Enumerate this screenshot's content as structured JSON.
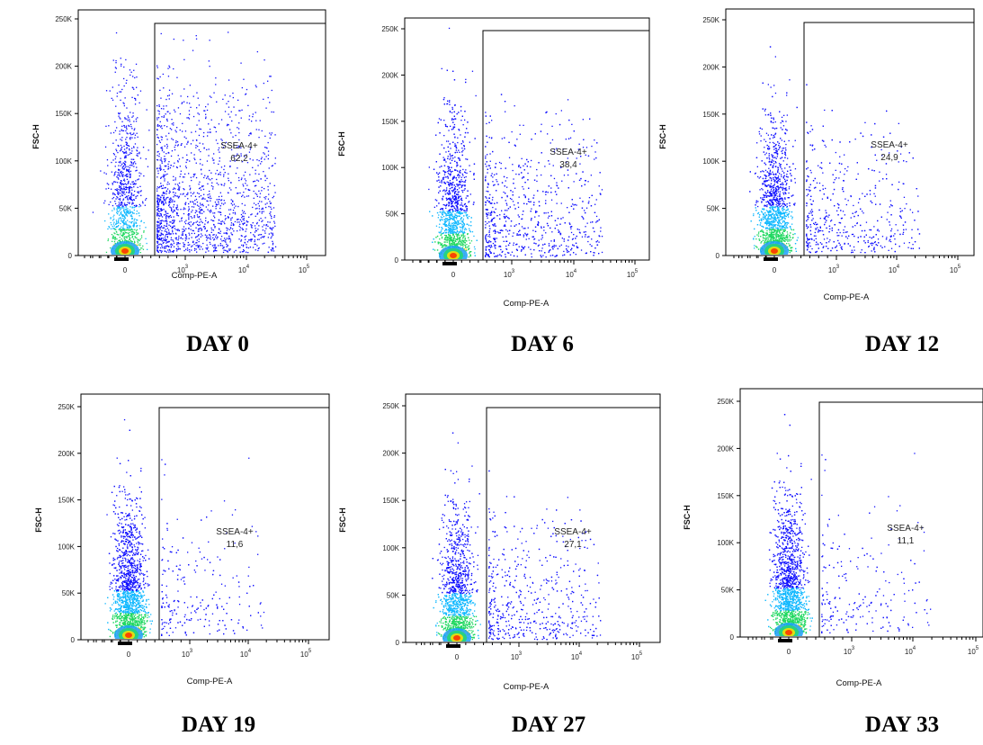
{
  "chart_data": [
    {
      "type": "scatter",
      "title": "DAY 0",
      "xlabel": "Comp-PE-A",
      "ylabel": "FSC-H",
      "y_ticks": [
        "0",
        "50K",
        "100K",
        "150K",
        "200K",
        "250K"
      ],
      "x_ticks": [
        "0",
        "10^3",
        "10^4",
        "10^5"
      ],
      "ylim": [
        0,
        262144
      ],
      "x_scale": "biexponential",
      "gate": {
        "name": "SSEA-4+",
        "x_min": 300,
        "y_max": 248000,
        "percent": "62,2"
      },
      "density_colors": [
        "#0000ff",
        "#00c8ff",
        "#00e070",
        "#ffff00",
        "#ff2000"
      ]
    },
    {
      "type": "scatter",
      "title": "DAY 6",
      "xlabel": "Comp-PE-A",
      "ylabel": "FSC-H",
      "y_ticks": [
        "0",
        "50K",
        "100K",
        "150K",
        "200K",
        "250K"
      ],
      "x_ticks": [
        "0",
        "10^3",
        "10^4",
        "10^5"
      ],
      "ylim": [
        0,
        262144
      ],
      "x_scale": "biexponential",
      "gate": {
        "name": "SSEA-4+",
        "x_min": 300,
        "y_max": 248000,
        "percent": "38,4"
      }
    },
    {
      "type": "scatter",
      "title": "DAY 12",
      "xlabel": "Comp-PE-A",
      "ylabel": "FSC-H",
      "y_ticks": [
        "0",
        "50K",
        "100K",
        "150K",
        "200K",
        "250K"
      ],
      "x_ticks": [
        "0",
        "10^3",
        "10^4",
        "10^5"
      ],
      "ylim": [
        0,
        262144
      ],
      "x_scale": "biexponential",
      "gate": {
        "name": "SSEA-4+",
        "x_min": 300,
        "y_max": 248000,
        "percent": "24,9"
      }
    },
    {
      "type": "scatter",
      "title": "DAY 19",
      "xlabel": "Comp-PE-A",
      "ylabel": "FSC-H",
      "y_ticks": [
        "0",
        "50K",
        "100K",
        "150K",
        "200K",
        "250K"
      ],
      "x_ticks": [
        "0",
        "10^3",
        "10^4",
        "10^5"
      ],
      "ylim": [
        0,
        262144
      ],
      "x_scale": "biexponential",
      "gate": {
        "name": "SSEA-4+",
        "x_min": 300,
        "y_max": 248000,
        "percent": "11,6"
      }
    },
    {
      "type": "scatter",
      "title": "DAY 27",
      "xlabel": "Comp-PE-A",
      "ylabel": "FSC-H",
      "y_ticks": [
        "0",
        "50K",
        "100K",
        "150K",
        "200K",
        "250K"
      ],
      "x_ticks": [
        "0",
        "10^3",
        "10^4",
        "10^5"
      ],
      "ylim": [
        0,
        262144
      ],
      "x_scale": "biexponential",
      "gate": {
        "name": "SSEA-4+",
        "x_min": 300,
        "y_max": 248000,
        "percent": "27,1"
      }
    },
    {
      "type": "scatter",
      "title": "DAY 33",
      "xlabel": "Comp-PE-A",
      "ylabel": "FSC-H",
      "y_ticks": [
        "0",
        "50K",
        "100K",
        "150K",
        "200K",
        "250K"
      ],
      "x_ticks": [
        "0",
        "10^3",
        "10^4",
        "10^5"
      ],
      "ylim": [
        0,
        262144
      ],
      "x_scale": "biexponential",
      "gate": {
        "name": "SSEA-4+",
        "x_min": 300,
        "y_max": 248000,
        "percent": "11,1"
      }
    }
  ]
}
